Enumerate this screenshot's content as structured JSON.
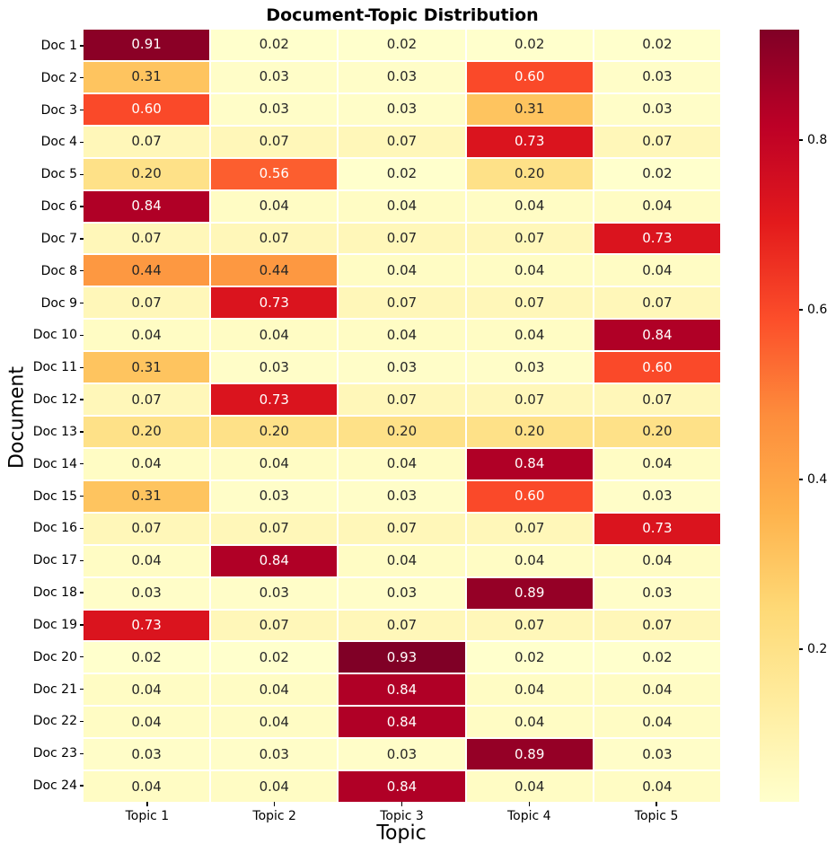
{
  "chart_data": {
    "type": "heatmap",
    "title": "Document-Topic Distribution",
    "xlabel": "Topic",
    "ylabel": "Document",
    "x_categories": [
      "Topic 1",
      "Topic 2",
      "Topic 3",
      "Topic 4",
      "Topic 5"
    ],
    "y_categories": [
      "Doc 1",
      "Doc 2",
      "Doc 3",
      "Doc 4",
      "Doc 5",
      "Doc 6",
      "Doc 7",
      "Doc 8",
      "Doc 9",
      "Doc 10",
      "Doc 11",
      "Doc 12",
      "Doc 13",
      "Doc 14",
      "Doc 15",
      "Doc 16",
      "Doc 17",
      "Doc 18",
      "Doc 19",
      "Doc 20",
      "Doc 21",
      "Doc 22",
      "Doc 23",
      "Doc 24"
    ],
    "values": [
      [
        0.91,
        0.02,
        0.02,
        0.02,
        0.02
      ],
      [
        0.31,
        0.03,
        0.03,
        0.6,
        0.03
      ],
      [
        0.6,
        0.03,
        0.03,
        0.31,
        0.03
      ],
      [
        0.07,
        0.07,
        0.07,
        0.73,
        0.07
      ],
      [
        0.2,
        0.56,
        0.02,
        0.2,
        0.02
      ],
      [
        0.84,
        0.04,
        0.04,
        0.04,
        0.04
      ],
      [
        0.07,
        0.07,
        0.07,
        0.07,
        0.73
      ],
      [
        0.44,
        0.44,
        0.04,
        0.04,
        0.04
      ],
      [
        0.07,
        0.73,
        0.07,
        0.07,
        0.07
      ],
      [
        0.04,
        0.04,
        0.04,
        0.04,
        0.84
      ],
      [
        0.31,
        0.03,
        0.03,
        0.03,
        0.6
      ],
      [
        0.07,
        0.73,
        0.07,
        0.07,
        0.07
      ],
      [
        0.2,
        0.2,
        0.2,
        0.2,
        0.2
      ],
      [
        0.04,
        0.04,
        0.04,
        0.84,
        0.04
      ],
      [
        0.31,
        0.03,
        0.03,
        0.6,
        0.03
      ],
      [
        0.07,
        0.07,
        0.07,
        0.07,
        0.73
      ],
      [
        0.04,
        0.84,
        0.04,
        0.04,
        0.04
      ],
      [
        0.03,
        0.03,
        0.03,
        0.89,
        0.03
      ],
      [
        0.73,
        0.07,
        0.07,
        0.07,
        0.07
      ],
      [
        0.02,
        0.02,
        0.93,
        0.02,
        0.02
      ],
      [
        0.04,
        0.04,
        0.84,
        0.04,
        0.04
      ],
      [
        0.04,
        0.04,
        0.84,
        0.04,
        0.04
      ],
      [
        0.03,
        0.03,
        0.03,
        0.89,
        0.03
      ],
      [
        0.04,
        0.04,
        0.84,
        0.04,
        0.04
      ]
    ],
    "value_format_decimals": 2,
    "vmin": 0.02,
    "vmax": 0.93,
    "colormap_name": "YlOrRd",
    "colormap_colors": [
      "#ffffcc",
      "#ffeda0",
      "#fed976",
      "#feb24c",
      "#fd8d3c",
      "#fc4e2a",
      "#e31a1c",
      "#bd0026",
      "#800026"
    ],
    "gridline_color": "#ffffff",
    "annotation_text_colors": {
      "dark": "#262626",
      "light": "#ffffff"
    },
    "luminance_threshold": 0.408,
    "colorbar": {
      "ticks": [
        0.2,
        0.4,
        0.6,
        0.8
      ],
      "position": "right"
    },
    "legend_position": "none",
    "grid": "cell-borders-only"
  }
}
